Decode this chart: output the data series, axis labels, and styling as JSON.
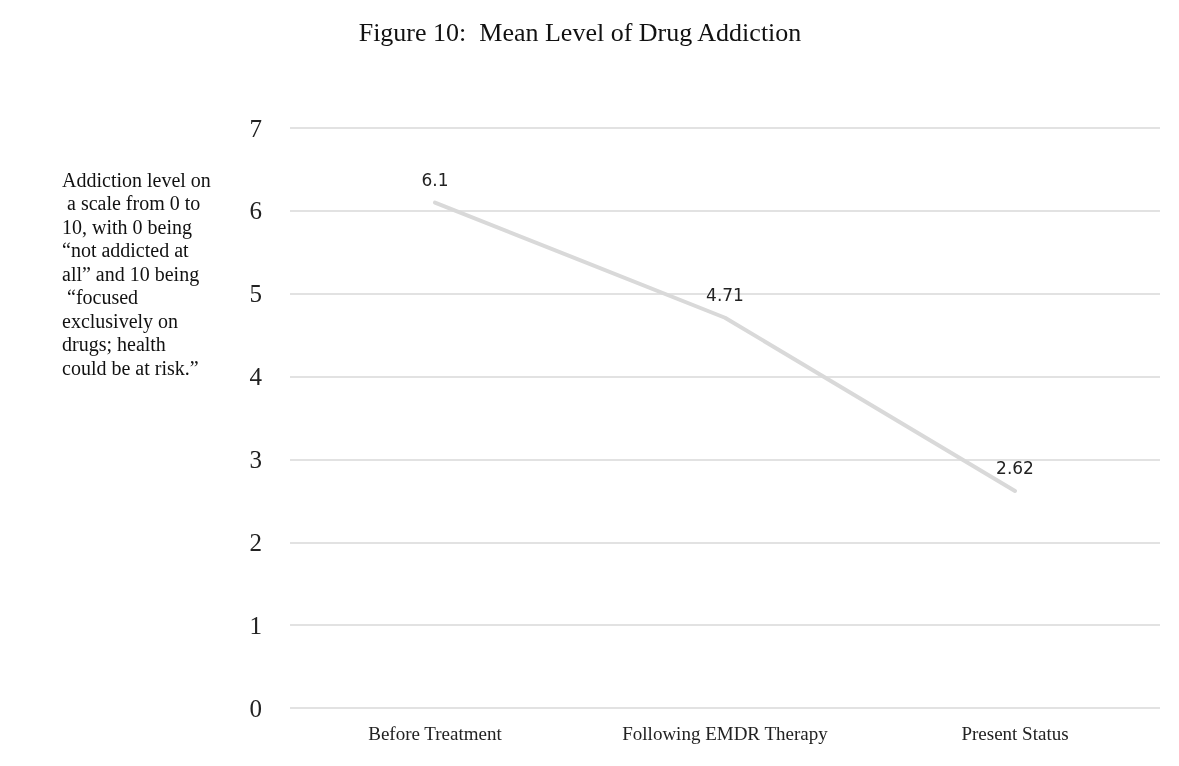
{
  "chart_data": {
    "type": "line",
    "title": "Figure 10:  Mean Level of Drug Addiction",
    "ylabel": "Addiction level on a scale from 0 to 10, with 0 being “not addicted at all” and 10 being “focused exclusively on drugs; health could be at risk.”",
    "categories": [
      "Before Treatment",
      "Following EMDR Therapy",
      "Present Status"
    ],
    "series": [
      {
        "color": "#d9d9d9",
        "values": [
          6.1,
          4.71,
          2.62
        ]
      }
    ],
    "ylim": [
      0,
      7
    ],
    "yticks": [
      0,
      1,
      2,
      3,
      4,
      5,
      6,
      7
    ],
    "grid": "y",
    "data_labels": true,
    "marker": "none",
    "line_style": "solid"
  }
}
